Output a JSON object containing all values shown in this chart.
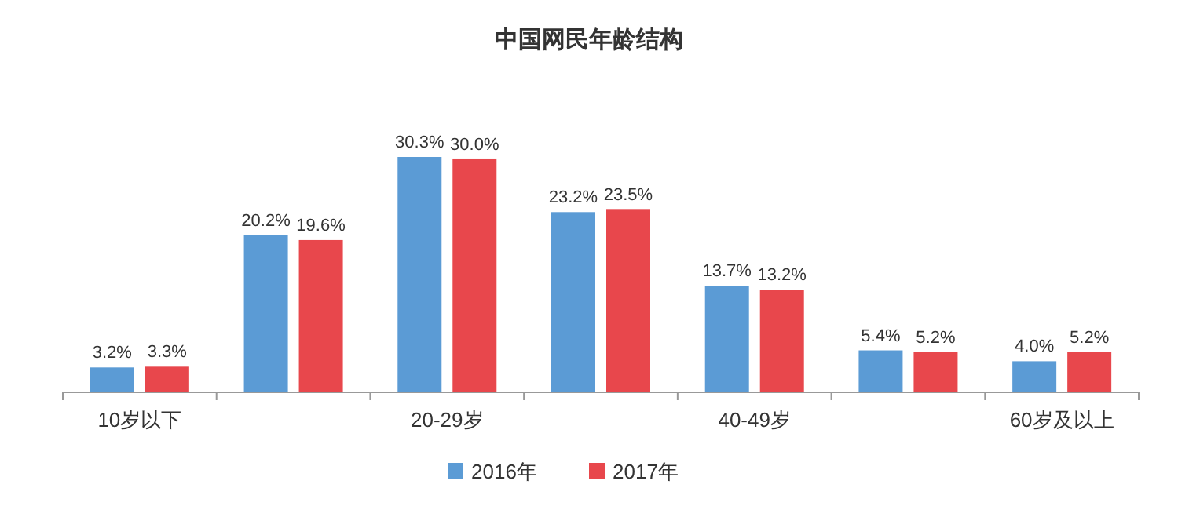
{
  "chart_data": {
    "type": "bar",
    "title": "中国网民年龄结构",
    "categories": [
      "10岁以下",
      null,
      "20-29岁",
      null,
      "40-49岁",
      null,
      "60岁及以上"
    ],
    "series": [
      {
        "name": "2016年",
        "color": "#5b9bd5",
        "values": [
          3.2,
          20.2,
          30.3,
          23.2,
          13.7,
          5.4,
          4.0
        ],
        "value_labels": [
          "3.2%",
          "20.2%",
          "30.3%",
          "23.2%",
          "13.7%",
          "5.4%",
          "4.0%"
        ]
      },
      {
        "name": "2017年",
        "color": "#e8474c",
        "values": [
          3.3,
          19.6,
          30.0,
          23.5,
          13.2,
          5.2,
          5.2
        ],
        "value_labels": [
          "3.3%",
          "19.6%",
          "30.0%",
          "23.5%",
          "13.2%",
          "5.2%",
          "5.2%"
        ]
      }
    ],
    "legend": "bottom"
  }
}
